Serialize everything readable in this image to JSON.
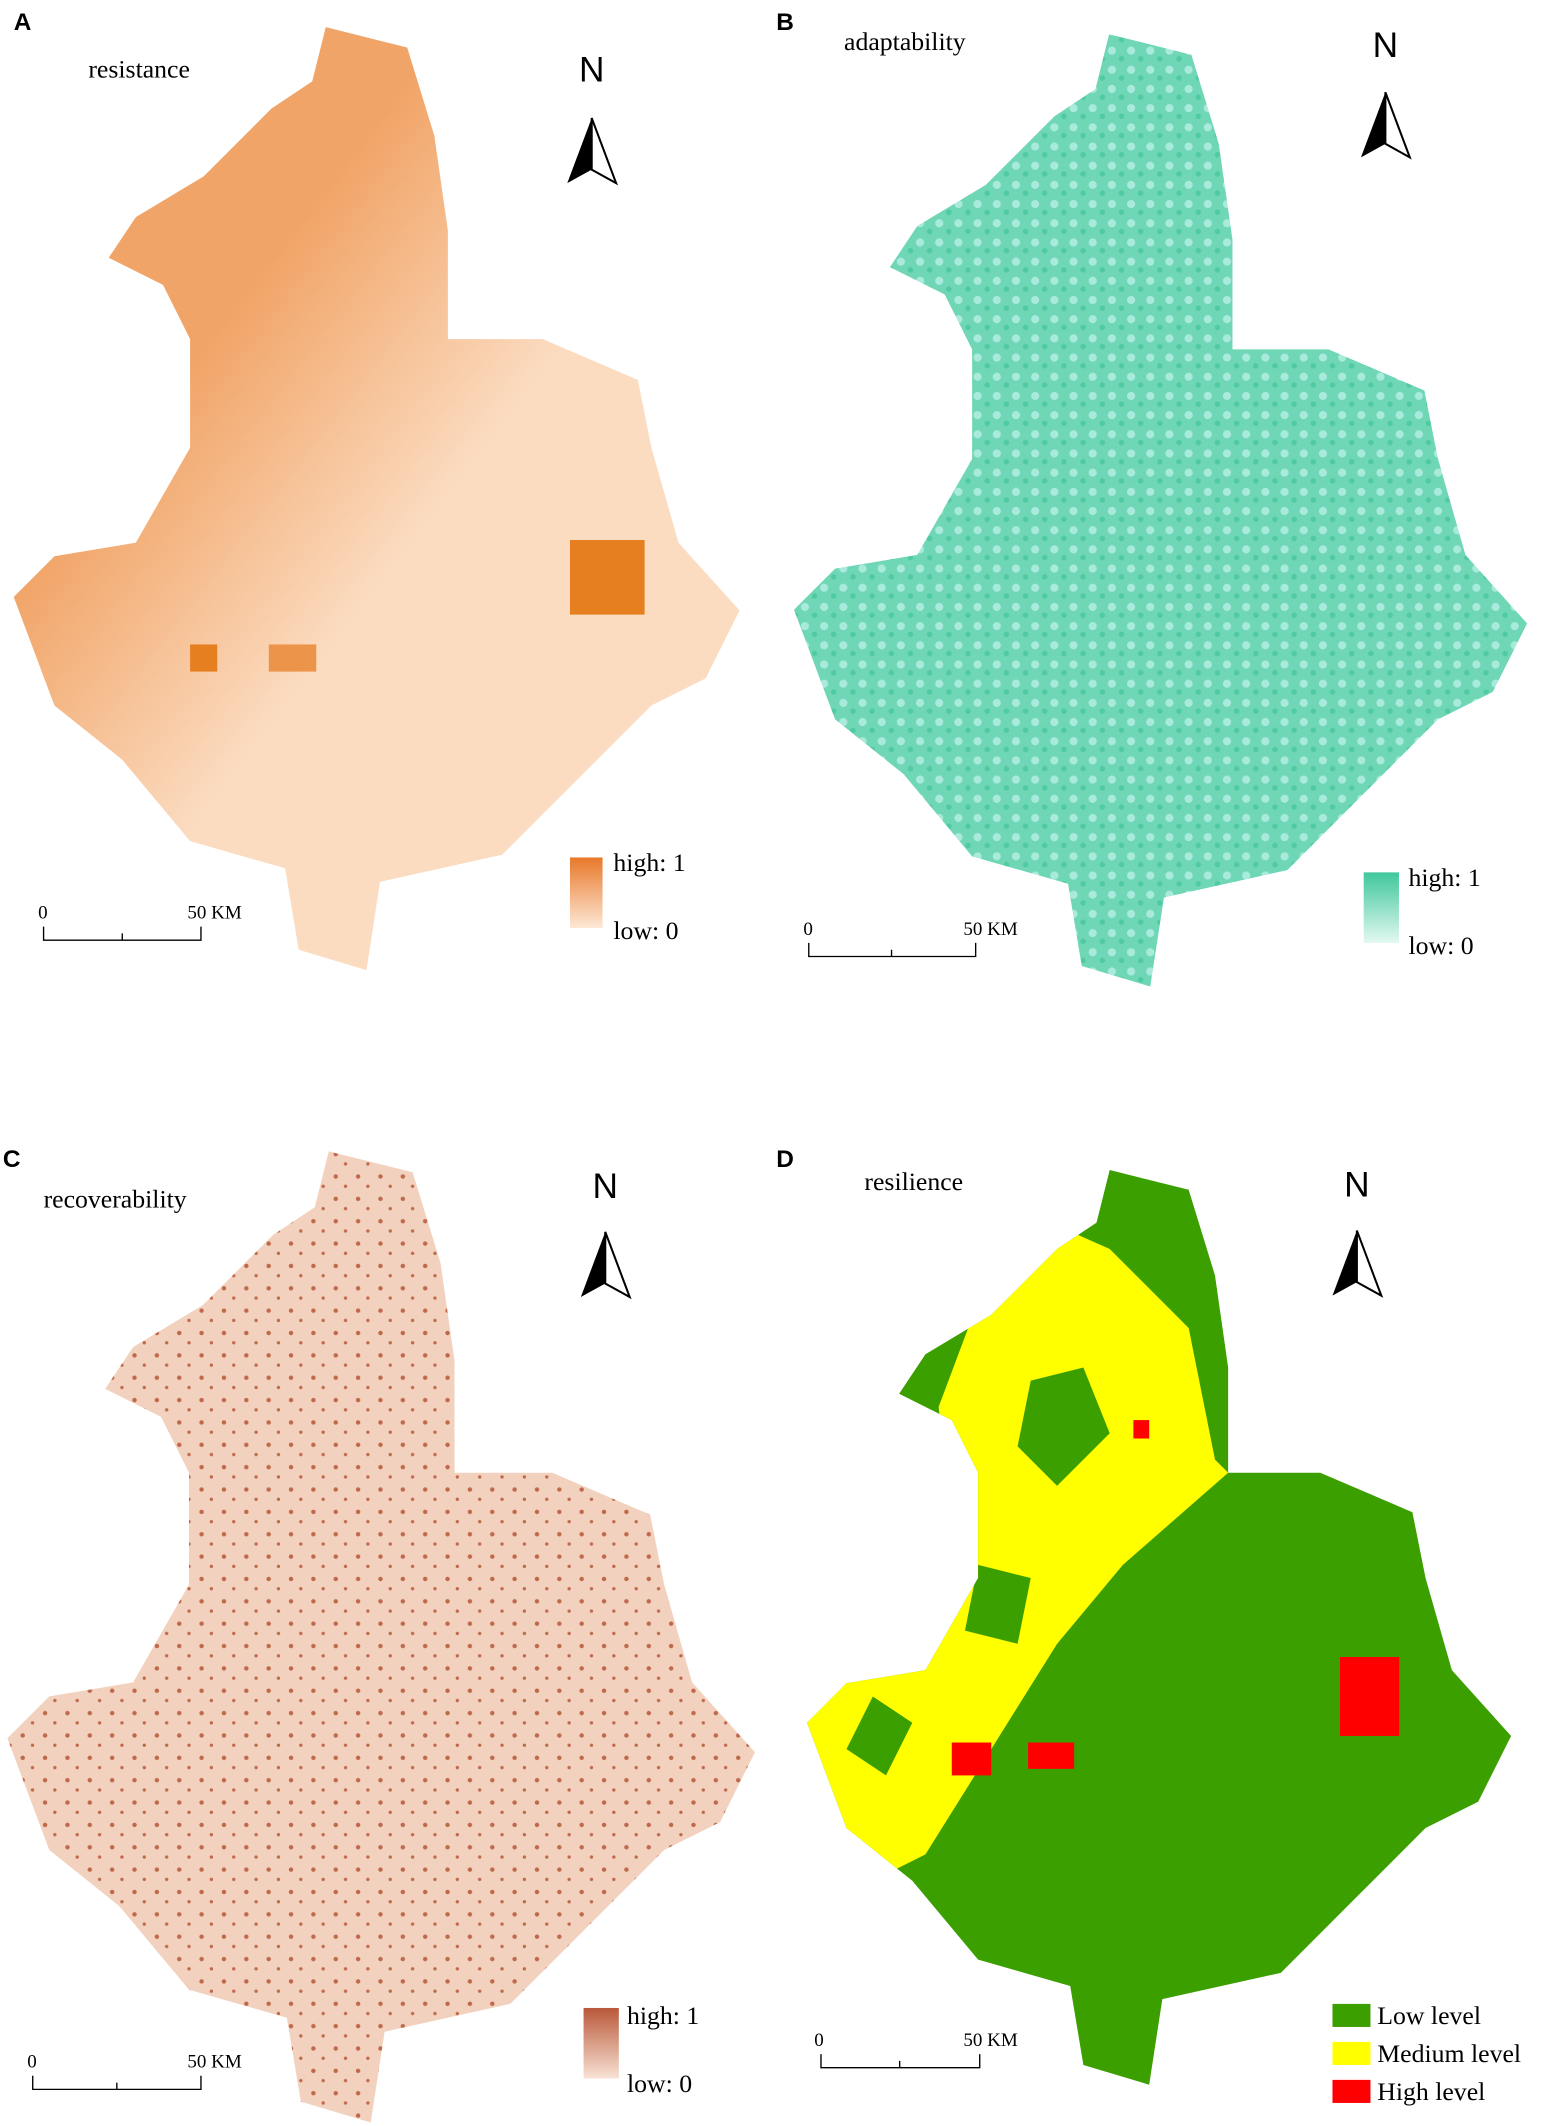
{
  "panels": [
    {
      "letter": "A",
      "title": "resistance",
      "north": "N",
      "scale": {
        "start": "0",
        "end": "50 KM"
      },
      "legend": [
        "high: 1",
        "low: 0"
      ]
    },
    {
      "letter": "B",
      "title": "adaptability",
      "north": "N",
      "scale": {
        "start": "0",
        "end": "50 KM"
      },
      "legend": [
        "high: 1",
        "low: 0"
      ]
    },
    {
      "letter": "C",
      "title": "recoverability",
      "north": "N",
      "scale": {
        "start": "0",
        "end": "50 KM"
      },
      "legend": [
        "high: 1",
        "low: 0"
      ]
    },
    {
      "letter": "D",
      "title": "resilience",
      "north": "N",
      "scale": {
        "start": "0",
        "end": "50 KM"
      },
      "legend": [
        "Low level",
        "Medium level",
        "High level"
      ]
    }
  ]
}
